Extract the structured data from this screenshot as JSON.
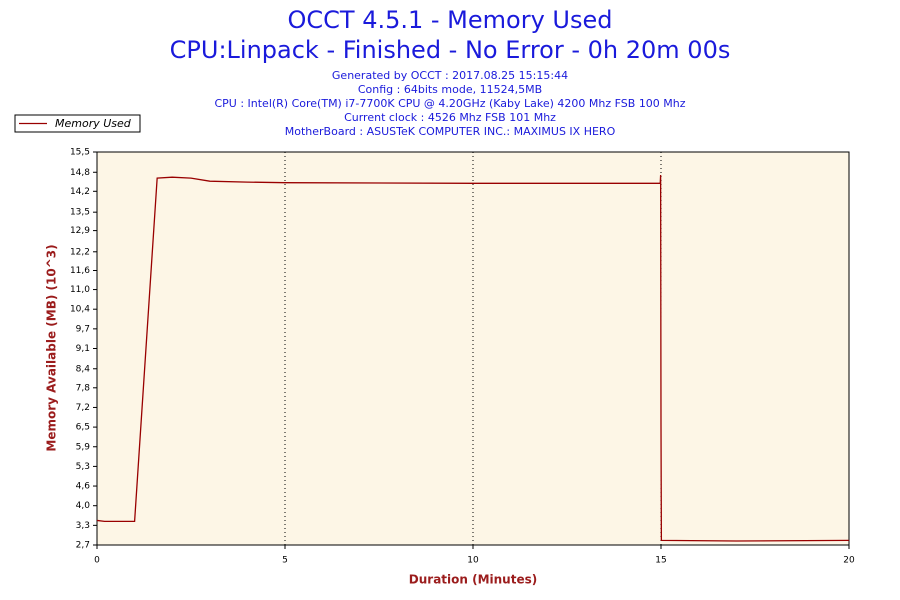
{
  "chart_data": {
    "type": "line",
    "title": "OCCT 4.5.1 - Memory Used",
    "subtitle": "CPU:Linpack - Finished - No Error - 0h 20m 00s",
    "info": [
      "Generated by OCCT : 2017.08.25 15:15:44",
      "Config : 64bits mode, 11524,5MB",
      "CPU : Intel(R) Core(TM) i7-7700K CPU @ 4.20GHz (Kaby Lake) 4200 Mhz FSB 100 Mhz",
      "Current clock : 4526 Mhz FSB 101 Mhz",
      "MotherBoard : ASUSTeK COMPUTER INC.: MAXIMUS IX HERO"
    ],
    "xlabel": "Duration (Minutes)",
    "ylabel": "Memory Available (MB) (10^3)",
    "xlim": [
      0,
      20
    ],
    "xticks": [
      0,
      5,
      10,
      15,
      20
    ],
    "ylim": [
      2.7,
      15.5
    ],
    "yticks": [
      {
        "value": 15.5,
        "label": "15,5"
      },
      {
        "value": 14.84,
        "label": "14,8"
      },
      {
        "value": 14.22,
        "label": "14,2"
      },
      {
        "value": 13.54,
        "label": "13,5"
      },
      {
        "value": 12.94,
        "label": "12,9"
      },
      {
        "value": 12.25,
        "label": "12,2"
      },
      {
        "value": 11.64,
        "label": "11,6"
      },
      {
        "value": 11.02,
        "label": "11,0"
      },
      {
        "value": 10.38,
        "label": "10,4"
      },
      {
        "value": 9.74,
        "label": "9,7"
      },
      {
        "value": 9.1,
        "label": "9,1"
      },
      {
        "value": 8.44,
        "label": "8,4"
      },
      {
        "value": 7.82,
        "label": "7,8"
      },
      {
        "value": 7.18,
        "label": "7,2"
      },
      {
        "value": 6.54,
        "label": "6,5"
      },
      {
        "value": 5.9,
        "label": "5,9"
      },
      {
        "value": 5.26,
        "label": "5,3"
      },
      {
        "value": 4.62,
        "label": "4,6"
      },
      {
        "value": 3.98,
        "label": "4,0"
      },
      {
        "value": 3.34,
        "label": "3,3"
      },
      {
        "value": 2.7,
        "label": "2,7"
      }
    ],
    "grid": "x",
    "legend": "top-left",
    "series": [
      {
        "name": "Memory Used",
        "color": "#990000",
        "x": [
          0,
          0.2,
          1.0,
          1.6,
          2.0,
          2.5,
          3.0,
          4.0,
          5.0,
          10.0,
          14.98,
          14.99,
          15.0,
          15.01,
          17.0,
          20.0
        ],
        "values": [
          3.5,
          3.47,
          3.47,
          14.65,
          14.68,
          14.65,
          14.55,
          14.52,
          14.5,
          14.48,
          14.48,
          14.75,
          6.6,
          2.85,
          2.83,
          2.85
        ]
      }
    ]
  }
}
